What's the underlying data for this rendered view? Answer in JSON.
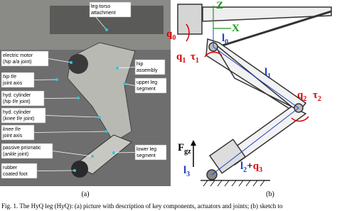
{
  "panel_a": {
    "labels": [
      {
        "lines": [
          [
            "leg-torso"
          ],
          [
            "attachment"
          ]
        ]
      },
      {
        "lines": [
          [
            "electric motor"
          ],
          [
            "(",
            "hip a/a",
            " joint)"
          ]
        ]
      },
      {
        "lines": [
          [
            "hip"
          ],
          [
            "assembly"
          ]
        ]
      },
      {
        "lines": [
          [
            "hip f/e"
          ],
          [
            "joint axis"
          ]
        ]
      },
      {
        "lines": [
          [
            "upper leg"
          ],
          [
            "segment"
          ]
        ]
      },
      {
        "lines": [
          [
            "hyd. cylinder"
          ],
          [
            "(",
            "hip f/e",
            " joint)"
          ]
        ]
      },
      {
        "lines": [
          [
            "hyd. cylinder"
          ],
          [
            "(",
            "knee f/e",
            " joint)"
          ]
        ]
      },
      {
        "lines": [
          [
            "knee f/e"
          ],
          [
            "joint axis"
          ]
        ]
      },
      {
        "lines": [
          [
            "passive prismatic"
          ],
          [
            "(",
            "ankle",
            " joint)"
          ]
        ]
      },
      {
        "lines": [
          [
            "lower leg"
          ],
          [
            "segment"
          ]
        ]
      },
      {
        "lines": [
          [
            "rubber"
          ],
          [
            "coated foot"
          ]
        ]
      }
    ],
    "tag": "(a)"
  },
  "panel_b": {
    "axes": [
      "Z",
      "X"
    ],
    "symbols": [
      {
        "main": "q",
        "sub": "0"
      },
      {
        "main": "q",
        "sub": "1"
      },
      {
        "main": "τ",
        "sub": "1"
      },
      {
        "main": "l",
        "sub": "0"
      },
      {
        "main": "l",
        "sub": "1"
      },
      {
        "main": "q",
        "sub": "2"
      },
      {
        "main": "τ",
        "sub": "2"
      },
      {
        "main": "F",
        "sub": "gz"
      },
      {
        "main": "l",
        "sub": "3"
      }
    ],
    "compound": [
      {
        "main": "l",
        "sub": "2"
      },
      "+",
      {
        "main": "q",
        "sub": "3"
      }
    ],
    "tag": "(b)"
  },
  "caption": "Fig. 1.    The HyQ leg (HyQ): (a) picture with description of key components, actuators and joints; (b) sketch to"
}
